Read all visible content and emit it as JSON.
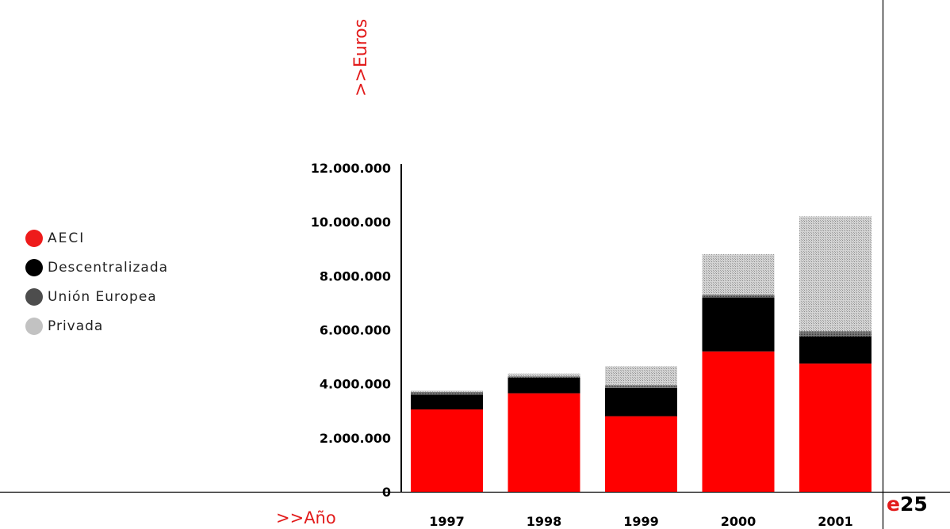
{
  "colors": {
    "aeci": "#ff0000",
    "descentralizada": "#000000",
    "union_europea": "#555555",
    "privada": "#bdbdbd",
    "accent": "#e21b1b"
  },
  "page": {
    "number_prefix": "e",
    "number": "25"
  },
  "legend": [
    {
      "label": "AECI",
      "color": "#ff0000"
    },
    {
      "label": "Descentralizada",
      "color": "#000000"
    },
    {
      "label": "Unión Europea",
      "color": "#555555"
    },
    {
      "label": "Privada",
      "color": "#bdbdbd"
    }
  ],
  "chart_data": {
    "type": "bar",
    "stacked": true,
    "title": "",
    "xlabel": ">>Año",
    "ylabel": ">>Euros",
    "ylim": [
      0,
      12000000
    ],
    "y_ticks": [
      0,
      2000000,
      4000000,
      6000000,
      8000000,
      10000000,
      12000000
    ],
    "y_tick_labels": [
      "0",
      "2.000.000",
      "4.000.000",
      "6.000.000",
      "8.000.000",
      "10.000.000",
      "12.000.000"
    ],
    "categories": [
      "1997",
      "1998",
      "1999",
      "2000",
      "2001"
    ],
    "series": [
      {
        "name": "AECI",
        "color": "#ff0000",
        "values": [
          3050000,
          3650000,
          2800000,
          5200000,
          4750000
        ]
      },
      {
        "name": "Descentralizada",
        "color": "#000000",
        "values": [
          550000,
          580000,
          1050000,
          2000000,
          1000000
        ]
      },
      {
        "name": "Unión Europea",
        "color": "#555555",
        "values": [
          100000,
          50000,
          100000,
          100000,
          200000
        ]
      },
      {
        "name": "Privada",
        "color": "#bdbdbd",
        "values": [
          50000,
          100000,
          700000,
          1500000,
          4250000
        ]
      }
    ],
    "grid": false,
    "legend_position": "left"
  }
}
